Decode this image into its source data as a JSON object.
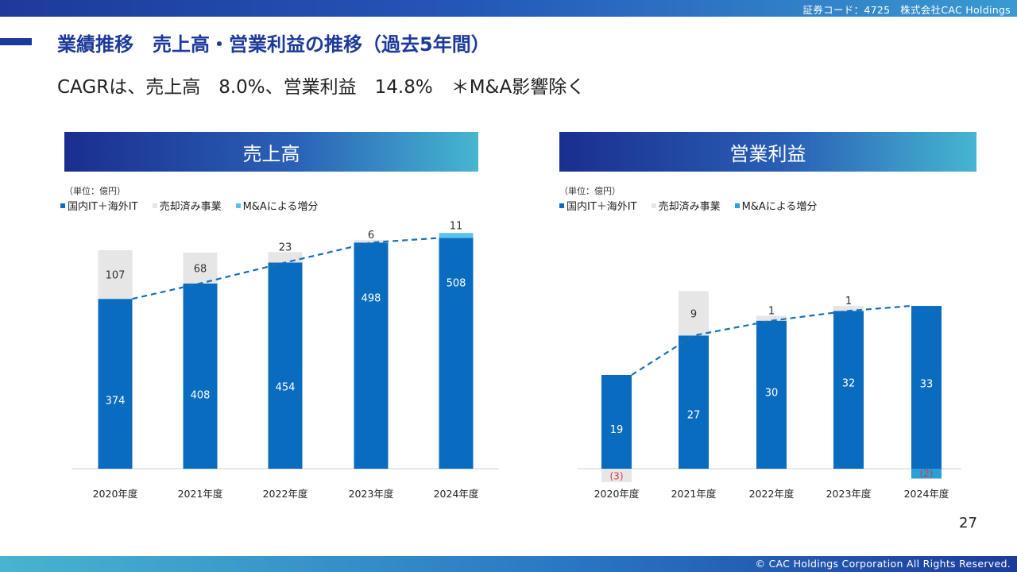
{
  "header": {
    "corp_text": "証券コード：4725　株式会社CAC Holdings"
  },
  "footer": {
    "copyright": "© CAC Holdings Corporation All Rights Reserved."
  },
  "title": "業績推移　売上高・営業利益の推移（過去5年間）",
  "subtitle": "CAGRは、売上高　8.0%、営業利益　14.8%　＊M&A影響除く",
  "page_number": "27",
  "colors": {
    "domestic": "#0a6cbf",
    "divested": "#e6e6e6",
    "ma": "#5bc0ea",
    "neg": "#d83a3a",
    "trend": "#1a6fb8"
  },
  "chart_data": [
    {
      "type": "bar",
      "stacked": true,
      "title": "売上高",
      "unit_label": "（単位：億円）",
      "categories": [
        "2020年度",
        "2021年度",
        "2022年度",
        "2023年度",
        "2024年度"
      ],
      "series": [
        {
          "name": "国内IT＋海外IT",
          "values": [
            374,
            408,
            454,
            498,
            508
          ]
        },
        {
          "name": "売却済み事業",
          "values": [
            107,
            68,
            23,
            6,
            0
          ]
        },
        {
          "name": "M&Aによる増分",
          "values": [
            0,
            0,
            0,
            0,
            11
          ]
        }
      ],
      "labels": {
        "domestic": [
          "374",
          "408",
          "454",
          "498",
          "508"
        ],
        "divested": [
          "107",
          "68",
          "23",
          "6",
          ""
        ],
        "ma": [
          "",
          "",
          "",
          "",
          "11"
        ]
      },
      "trendline": "dashed line through tops of 国内IT＋海外IT bars",
      "ylim": [
        0,
        530
      ]
    },
    {
      "type": "bar",
      "stacked": true,
      "title": "営業利益",
      "unit_label": "（単位：億円）",
      "categories": [
        "2020年度",
        "2021年度",
        "2022年度",
        "2023年度",
        "2024年度"
      ],
      "series": [
        {
          "name": "国内IT＋海外IT",
          "values": [
            19,
            27,
            30,
            32,
            33
          ]
        },
        {
          "name": "売却済み事業",
          "values": [
            -3,
            9,
            1,
            1,
            0
          ]
        },
        {
          "name": "M&Aによる増分",
          "values": [
            0,
            0,
            0,
            0,
            -2
          ]
        }
      ],
      "labels": {
        "domestic": [
          "19",
          "27",
          "30",
          "32",
          "33"
        ],
        "divested": [
          "(3)",
          "9",
          "1",
          "1",
          ""
        ],
        "ma": [
          "",
          "",
          "",
          "",
          "(2)"
        ]
      },
      "trendline": "dashed line through tops of 国内IT＋海外IT bars",
      "ylim": [
        -3,
        36
      ]
    }
  ]
}
